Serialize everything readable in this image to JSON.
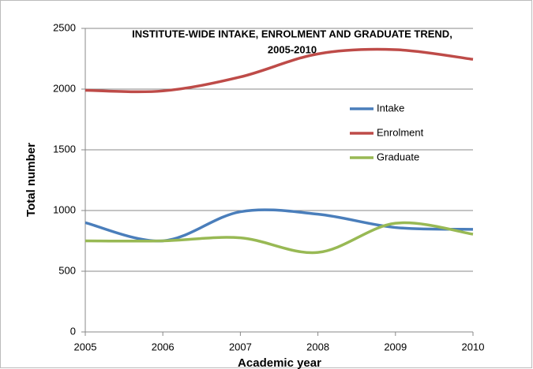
{
  "chart_data": {
    "type": "line",
    "title": [
      "INSTITUTE-WIDE INTAKE, ENROLMENT AND GRADUATE TREND,",
      "2005-2010"
    ],
    "x_label": "Academic year",
    "y_label": "Total number",
    "x": [
      2005,
      2006,
      2007,
      2008,
      2009,
      2010
    ],
    "series": [
      {
        "name": "Intake",
        "color": "#4a7ebb",
        "values": [
          900,
          750,
          990,
          970,
          860,
          845
        ]
      },
      {
        "name": "Enrolment",
        "color": "#be4b48",
        "values": [
          1990,
          1985,
          2100,
          2290,
          2325,
          2245
        ]
      },
      {
        "name": "Graduate",
        "color": "#98b954",
        "values": [
          750,
          750,
          775,
          655,
          895,
          805
        ]
      }
    ],
    "xlim": [
      2005,
      2010
    ],
    "xticks": [
      2005,
      2006,
      2007,
      2008,
      2009,
      2010
    ],
    "ylim": [
      0,
      2500
    ],
    "yticks": [
      0,
      500,
      1000,
      1500,
      2000,
      2500
    ],
    "grid": true,
    "legend": "right",
    "smooth": true
  }
}
